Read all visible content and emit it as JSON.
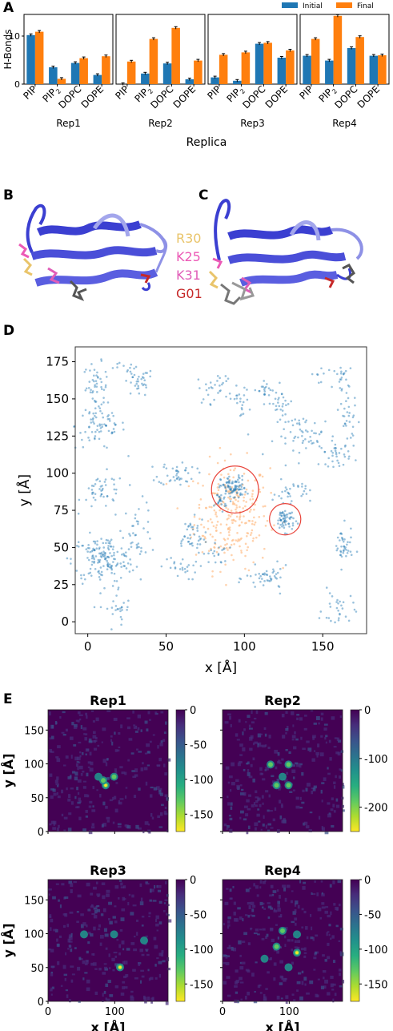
{
  "panels": {
    "A": "A",
    "B": "B",
    "C": "C",
    "D": "D",
    "E": "E"
  },
  "colors": {
    "initial": "#1f77b4",
    "final": "#ff7f0e",
    "scatter_blue": "#1f77b4",
    "scatter_orange": "#ffbf8a",
    "circle": "#e8433a",
    "protein": "#3b3fd1",
    "protein_light": "#8e91e6",
    "R30": "#e9c46a",
    "K25": "#ec5ab6",
    "K31": "#e05db8",
    "G01": "#c62828",
    "heatmap_bg": "#440154"
  },
  "chart_data": [
    {
      "type": "bar",
      "ylabel": "H-Bonds",
      "xlabel": "Replica",
      "ylim": [
        0,
        14.5
      ],
      "yticks": [
        "0",
        "10"
      ],
      "legend": [
        "Initial",
        "Final"
      ],
      "legend_position": "top-right",
      "categories": [
        "PIP",
        "PIP",
        "DOPC",
        "DOPE"
      ],
      "category_subscripts": [
        "",
        "2",
        "",
        ""
      ],
      "groups": [
        {
          "name": "Rep1",
          "initial": [
            10.2,
            3.5,
            4.4,
            1.9
          ],
          "final": [
            10.9,
            1.1,
            5.4,
            5.8
          ]
        },
        {
          "name": "Rep2",
          "initial": [
            0,
            2.2,
            4.3,
            1.0
          ],
          "final": [
            4.7,
            9.4,
            11.7,
            4.9
          ]
        },
        {
          "name": "Rep3",
          "initial": [
            1.4,
            0.7,
            8.4,
            5.5
          ],
          "final": [
            6.1,
            6.6,
            8.6,
            7.0
          ]
        },
        {
          "name": "Rep4",
          "initial": [
            5.9,
            4.9,
            7.5,
            5.9
          ],
          "final": [
            9.4,
            14.2,
            9.8,
            6.0
          ]
        }
      ]
    },
    {
      "type": "scatter",
      "xlabel": "x [Å]",
      "ylabel": "y [Å]",
      "xlim": [
        -8,
        178
      ],
      "ylim": [
        -8,
        185
      ],
      "xticks": [
        0,
        50,
        100,
        150
      ],
      "yticks": [
        0,
        25,
        50,
        75,
        100,
        125,
        150,
        175
      ],
      "clusters_blue": [
        {
          "x": 5,
          "y": 158,
          "n": 45,
          "sx": 4,
          "sy": 8
        },
        {
          "x": 8,
          "y": 132,
          "n": 70,
          "sx": 8,
          "sy": 8
        },
        {
          "x": 32,
          "y": 161,
          "n": 35,
          "sx": 5,
          "sy": 5
        },
        {
          "x": 22,
          "y": 170,
          "n": 10,
          "sx": 4,
          "sy": 2
        },
        {
          "x": 10,
          "y": 88,
          "n": 45,
          "sx": 7,
          "sy": 6
        },
        {
          "x": 32,
          "y": 63,
          "n": 35,
          "sx": 5,
          "sy": 9
        },
        {
          "x": 10,
          "y": 42,
          "n": 160,
          "sx": 10,
          "sy": 8
        },
        {
          "x": 20,
          "y": 8,
          "n": 25,
          "sx": 4,
          "sy": 8
        },
        {
          "x": 57,
          "y": 100,
          "n": 40,
          "sx": 6,
          "sy": 4
        },
        {
          "x": 65,
          "y": 58,
          "n": 40,
          "sx": 5,
          "sy": 6
        },
        {
          "x": 58,
          "y": 36,
          "n": 25,
          "sx": 6,
          "sy": 4
        },
        {
          "x": 82,
          "y": 46,
          "n": 20,
          "sx": 4,
          "sy": 4
        },
        {
          "x": 93,
          "y": 90,
          "n": 90,
          "sx": 4,
          "sy": 4
        },
        {
          "x": 85,
          "y": 82,
          "n": 25,
          "sx": 2,
          "sy": 3
        },
        {
          "x": 82,
          "y": 157,
          "n": 30,
          "sx": 6,
          "sy": 5
        },
        {
          "x": 97,
          "y": 148,
          "n": 20,
          "sx": 3,
          "sy": 5
        },
        {
          "x": 112,
          "y": 156,
          "n": 20,
          "sx": 4,
          "sy": 4
        },
        {
          "x": 123,
          "y": 147,
          "n": 25,
          "sx": 4,
          "sy": 4
        },
        {
          "x": 140,
          "y": 125,
          "n": 60,
          "sx": 10,
          "sy": 7
        },
        {
          "x": 158,
          "y": 113,
          "n": 30,
          "sx": 5,
          "sy": 4
        },
        {
          "x": 167,
          "y": 135,
          "n": 30,
          "sx": 3,
          "sy": 10
        },
        {
          "x": 163,
          "y": 160,
          "n": 20,
          "sx": 3,
          "sy": 8
        },
        {
          "x": 148,
          "y": 168,
          "n": 10,
          "sx": 5,
          "sy": 3
        },
        {
          "x": 130,
          "y": 87,
          "n": 30,
          "sx": 6,
          "sy": 4
        },
        {
          "x": 126,
          "y": 69,
          "n": 60,
          "sx": 3,
          "sy": 4
        },
        {
          "x": 115,
          "y": 29,
          "n": 45,
          "sx": 7,
          "sy": 4
        },
        {
          "x": 163,
          "y": 50,
          "n": 40,
          "sx": 3,
          "sy": 7
        },
        {
          "x": 160,
          "y": 8,
          "n": 30,
          "sx": 5,
          "sy": 6
        }
      ],
      "cluster_orange": {
        "x": 92,
        "y": 72,
        "n": 260,
        "sx": 12,
        "sy": 18
      },
      "highlight_circles": [
        {
          "x": 94,
          "y": 89,
          "r": 15
        },
        {
          "x": 126,
          "y": 69,
          "r": 10
        }
      ]
    },
    {
      "type": "heatmap",
      "xlabel": "x [Å]",
      "ylabel": "y [Å]",
      "xticks": [
        "0",
        "100"
      ],
      "yticks": [
        "0",
        "50",
        "100",
        "150"
      ],
      "maps": [
        {
          "title": "Rep1",
          "cbar_ticks": [
            "0",
            "-50",
            "-100",
            "-150"
          ],
          "cbar_min": -175
        },
        {
          "title": "Rep2",
          "cbar_ticks": [
            "0",
            "-100",
            "-200"
          ],
          "cbar_min": -250
        },
        {
          "title": "Rep3",
          "cbar_ticks": [
            "0",
            "-50",
            "-100",
            "-150"
          ],
          "cbar_min": -175
        },
        {
          "title": "Rep4",
          "cbar_ticks": [
            "0",
            "-50",
            "-100",
            "-150"
          ],
          "cbar_min": -175
        }
      ]
    }
  ],
  "structure_labels": {
    "R30": "R30",
    "K25": "K25",
    "K31": "K31",
    "G01": "G01"
  }
}
